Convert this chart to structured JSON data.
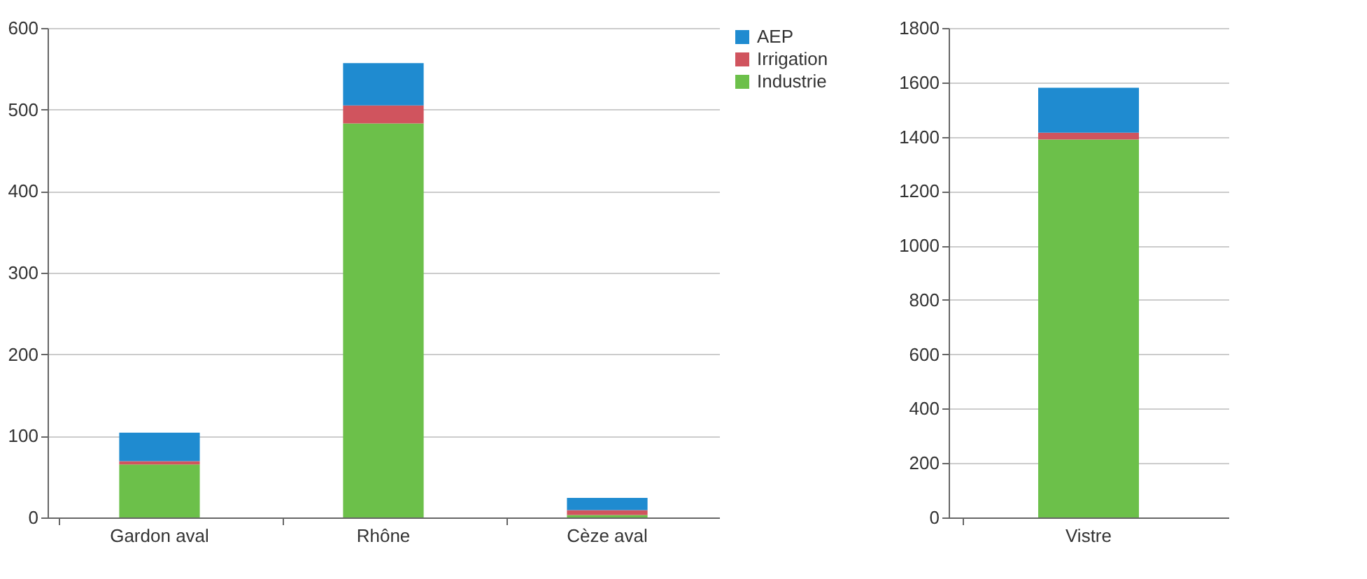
{
  "chart_data": [
    {
      "type": "bar",
      "stacked": true,
      "categories": [
        "Gardon aval",
        "Rhône",
        "Cèze aval"
      ],
      "ylim": [
        0,
        600
      ],
      "yticks": [
        0,
        100,
        200,
        300,
        400,
        500,
        600
      ],
      "grid": "y",
      "legend": "right",
      "series": [
        {
          "name": "Industrie",
          "color": "#6cc04a",
          "values": [
            65,
            483,
            3
          ]
        },
        {
          "name": "Irrigation",
          "color": "#d0545e",
          "values": [
            4,
            22,
            6
          ]
        },
        {
          "name": "AEP",
          "color": "#1f8bd0",
          "values": [
            35,
            52,
            15
          ]
        }
      ]
    },
    {
      "type": "bar",
      "stacked": true,
      "categories": [
        "Vistre"
      ],
      "ylim": [
        0,
        1800
      ],
      "yticks": [
        0,
        200,
        400,
        600,
        800,
        1000,
        1200,
        1400,
        1600,
        1800
      ],
      "grid": "y",
      "series": [
        {
          "color": "#6cc04a",
          "values": [
            1390
          ]
        },
        {
          "color": "#d0545e",
          "values": [
            25
          ]
        },
        {
          "color": "#1f8bd0",
          "values": [
            165
          ]
        }
      ]
    }
  ]
}
